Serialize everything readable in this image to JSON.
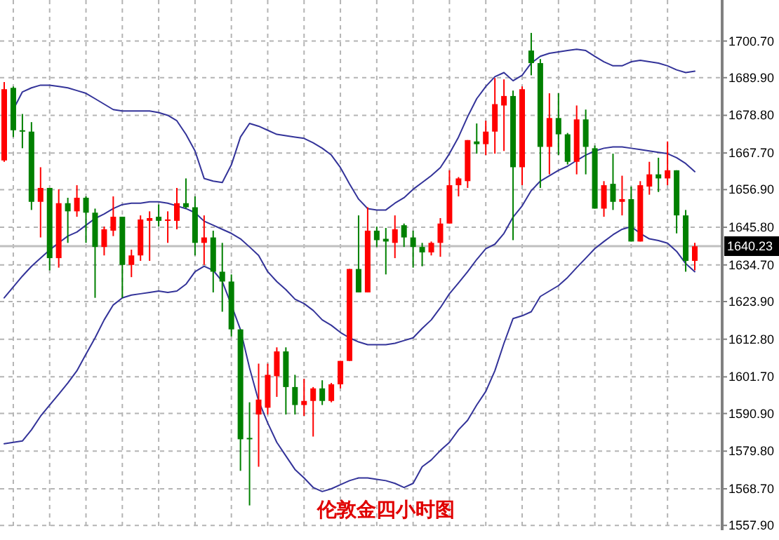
{
  "chart_data": {
    "type": "candlestick",
    "title": "伦敦金四小时图",
    "categories": [
      null,
      null,
      null,
      null,
      null,
      null,
      null,
      null,
      null,
      null,
      null,
      null,
      null,
      null,
      null,
      null,
      null,
      null,
      null,
      null,
      null,
      null,
      null,
      null,
      null,
      null,
      null,
      null,
      null,
      null,
      null,
      null,
      null,
      null,
      null,
      null,
      null,
      null,
      null,
      null,
      null,
      null,
      null,
      null,
      null,
      null,
      null,
      null,
      null,
      null,
      null,
      null,
      null,
      null,
      null,
      null,
      null,
      null,
      null,
      null,
      null,
      null,
      null,
      null,
      null,
      null,
      null,
      null,
      null,
      null,
      null,
      null,
      null,
      null,
      null,
      null,
      null
    ],
    "ohlc": [
      [
        1665.5,
        1688.6,
        1665.1,
        1686.5
      ],
      [
        1686.9,
        1687.3,
        1672.4,
        1674.4
      ],
      [
        1674.4,
        1679.2,
        1669.1,
        1674.0
      ],
      [
        1674.0,
        1676.8,
        1650.9,
        1653.3
      ],
      [
        1653.3,
        1663.5,
        1642.8,
        1657.4
      ],
      [
        1657.4,
        1657.4,
        1633.1,
        1636.7
      ],
      [
        1636.7,
        1657.0,
        1633.9,
        1652.9
      ],
      [
        1652.9,
        1654.5,
        1641.2,
        1650.5
      ],
      [
        1650.5,
        1658.2,
        1648.9,
        1654.5
      ],
      [
        1654.5,
        1654.9,
        1641.2,
        1650.1
      ],
      [
        1650.1,
        1651.3,
        1625.0,
        1640.0
      ],
      [
        1640.0,
        1646.0,
        1637.5,
        1645.2
      ],
      [
        1644.8,
        1654.9,
        1643.2,
        1648.9
      ],
      [
        1648.9,
        1648.9,
        1625.0,
        1634.7
      ],
      [
        1634.7,
        1639.2,
        1631.1,
        1637.5
      ],
      [
        1637.5,
        1649.3,
        1635.9,
        1648.1
      ],
      [
        1647.7,
        1650.5,
        1635.9,
        1648.5
      ],
      [
        1648.9,
        1652.5,
        1646.0,
        1647.7
      ],
      [
        1647.7,
        1650.5,
        1641.2,
        1648.1
      ],
      [
        1647.7,
        1657.4,
        1645.2,
        1652.9
      ],
      [
        1652.9,
        1660.2,
        1651.3,
        1651.7
      ],
      [
        1651.7,
        1654.9,
        1637.5,
        1641.2
      ],
      [
        1641.2,
        1649.3,
        1634.7,
        1642.8
      ],
      [
        1642.8,
        1644.8,
        1626.6,
        1632.7
      ],
      [
        1632.7,
        1641.2,
        1620.9,
        1629.8
      ],
      [
        1629.8,
        1631.9,
        1613.6,
        1615.7
      ],
      [
        1615.7,
        1615.7,
        1574.0,
        1583.3
      ],
      [
        1583.7,
        1594.2,
        1563.8,
        1583.3
      ],
      [
        1590.6,
        1605.6,
        1575.2,
        1595.0
      ],
      [
        1592.6,
        1605.6,
        1590.6,
        1602.3
      ],
      [
        1601.9,
        1610.4,
        1595.8,
        1609.2
      ],
      [
        1609.2,
        1610.4,
        1590.6,
        1598.7
      ],
      [
        1598.7,
        1602.3,
        1590.6,
        1593.4
      ],
      [
        1593.4,
        1601.1,
        1590.2,
        1594.6
      ],
      [
        1594.6,
        1598.7,
        1584.1,
        1598.3
      ],
      [
        1598.3,
        1600.7,
        1593.4,
        1594.6
      ],
      [
        1594.6,
        1599.9,
        1594.2,
        1599.5
      ],
      [
        1599.5,
        1606.4,
        1598.3,
        1606.4
      ],
      [
        1606.4,
        1633.5,
        1606.4,
        1633.5
      ],
      [
        1633.5,
        1649.3,
        1626.6,
        1626.6
      ],
      [
        1626.6,
        1651.7,
        1626.6,
        1644.8
      ],
      [
        1644.8,
        1646.0,
        1640.0,
        1642.0
      ],
      [
        1642.4,
        1645.6,
        1631.9,
        1641.6
      ],
      [
        1641.2,
        1649.3,
        1636.7,
        1645.2
      ],
      [
        1646.4,
        1646.9,
        1640.0,
        1642.8
      ],
      [
        1642.8,
        1644.8,
        1633.9,
        1640.0
      ],
      [
        1640.0,
        1641.2,
        1634.3,
        1638.4
      ],
      [
        1638.4,
        1641.6,
        1637.5,
        1641.2
      ],
      [
        1641.2,
        1648.5,
        1637.1,
        1646.9
      ],
      [
        1646.9,
        1662.6,
        1646.9,
        1658.2
      ],
      [
        1658.2,
        1660.6,
        1654.9,
        1660.2
      ],
      [
        1659.4,
        1671.5,
        1657.4,
        1671.5
      ],
      [
        1671.1,
        1676.4,
        1667.5,
        1670.3
      ],
      [
        1670.3,
        1677.2,
        1667.1,
        1674.0
      ],
      [
        1674.0,
        1689.8,
        1667.5,
        1682.1
      ],
      [
        1681.7,
        1689.4,
        1668.3,
        1684.5
      ],
      [
        1684.5,
        1686.1,
        1642.0,
        1663.5
      ],
      [
        1663.5,
        1687.3,
        1658.2,
        1686.5
      ],
      [
        1697.9,
        1703.1,
        1690.6,
        1694.2
      ],
      [
        1694.2,
        1695.4,
        1657.4,
        1669.5
      ],
      [
        1669.5,
        1685.3,
        1661.4,
        1678.0
      ],
      [
        1678.0,
        1685.3,
        1667.1,
        1673.2
      ],
      [
        1673.2,
        1673.6,
        1664.3,
        1665.1
      ],
      [
        1665.1,
        1681.7,
        1661.4,
        1677.6
      ],
      [
        1677.6,
        1680.5,
        1661.4,
        1669.5
      ],
      [
        1669.1,
        1669.9,
        1651.3,
        1651.3
      ],
      [
        1651.3,
        1659.4,
        1648.9,
        1658.2
      ],
      [
        1658.6,
        1667.5,
        1650.9,
        1653.3
      ],
      [
        1653.3,
        1661.0,
        1649.3,
        1654.1
      ],
      [
        1654.1,
        1657.8,
        1641.6,
        1641.6
      ],
      [
        1641.6,
        1659.4,
        1641.6,
        1658.2
      ],
      [
        1657.8,
        1665.1,
        1655.4,
        1661.4
      ],
      [
        1661.4,
        1666.3,
        1656.2,
        1660.2
      ],
      [
        1660.2,
        1671.1,
        1658.2,
        1662.6
      ],
      [
        1662.6,
        1662.6,
        1644.0,
        1649.3
      ],
      [
        1649.3,
        1650.9,
        1632.7,
        1635.9
      ],
      [
        1635.9,
        1641.2,
        1633.1,
        1640.2
      ]
    ],
    "colors": [
      "#ff0000",
      "#008000",
      "#008000",
      "#008000",
      "#ff0000",
      "#008000",
      "#ff0000",
      "#008000",
      "#ff0000",
      "#008000",
      "#008000",
      "#ff0000",
      "#ff0000",
      "#008000",
      "#ff0000",
      "#ff0000",
      "#ff0000",
      "#008000",
      "#ff0000",
      "#ff0000",
      "#008000",
      "#008000",
      "#ff0000",
      "#008000",
      "#008000",
      "#008000",
      "#008000",
      "#008000",
      "#ff0000",
      "#ff0000",
      "#ff0000",
      "#008000",
      "#008000",
      "#ff0000",
      "#ff0000",
      "#008000",
      "#ff0000",
      "#ff0000",
      "#ff0000",
      "#008000",
      "#ff0000",
      "#008000",
      "#008000",
      "#ff0000",
      "#008000",
      "#008000",
      "#008000",
      "#ff0000",
      "#ff0000",
      "#ff0000",
      "#ff0000",
      "#ff0000",
      "#008000",
      "#ff0000",
      "#ff0000",
      "#ff0000",
      "#008000",
      "#ff0000",
      "#008000",
      "#008000",
      "#ff0000",
      "#008000",
      "#008000",
      "#ff0000",
      "#008000",
      "#008000",
      "#ff0000",
      "#008000",
      "#ff0000",
      "#008000",
      "#ff0000",
      "#ff0000",
      "#008000",
      "#ff0000",
      "#008000",
      "#008000",
      "#ff0000"
    ],
    "series": [
      {
        "type": "line",
        "color": "#333399",
        "values": [
          null,
          1680.5,
          1685.7,
          1686.9,
          1687.7,
          1687.7,
          1687.3,
          1686.9,
          1686.1,
          1685.3,
          1683.7,
          1682.1,
          1680.5,
          1680.1,
          1680.1,
          1680.1,
          1680.1,
          1679.6,
          1678.8,
          1677.2,
          1673.2,
          1668.3,
          1660.2,
          1659.4,
          1659.0,
          1664.2,
          1672.4,
          1676.4,
          1675.6,
          1674.4,
          1673.2,
          1672.8,
          1672.4,
          1672.0,
          1670.7,
          1669.1,
          1667.1,
          1663.4,
          1658.6,
          1654.1,
          1651.3,
          1650.9,
          1650.9,
          1652.9,
          1654.5,
          1657.0,
          1659.0,
          1661.0,
          1663.4,
          1667.5,
          1672.4,
          1678.4,
          1683.7,
          1687.3,
          1690.2,
          1691.4,
          1689.0,
          1690.6,
          1694.2,
          1696.2,
          1697.1,
          1697.5,
          1697.9,
          1698.3,
          1697.9,
          1696.2,
          1694.6,
          1693.4,
          1693.4,
          1694.6,
          1695.0,
          1694.6,
          1694.2,
          1693.4,
          1692.2,
          1691.4,
          1691.8
        ]
      },
      {
        "type": "line",
        "color": "#333399",
        "values": [
          1625.0,
          1628.2,
          1631.4,
          1634.3,
          1636.7,
          1639.1,
          1641.2,
          1643.2,
          1644.4,
          1646.4,
          1648.4,
          1649.7,
          1651.3,
          1652.5,
          1652.9,
          1652.9,
          1653.3,
          1653.3,
          1652.9,
          1652.1,
          1651.3,
          1650.1,
          1647.6,
          1646.4,
          1645.2,
          1644.0,
          1642.4,
          1640.0,
          1637.5,
          1632.7,
          1629.8,
          1627.4,
          1624.6,
          1623.3,
          1621.3,
          1618.5,
          1616.9,
          1614.8,
          1613.2,
          1612.0,
          1611.2,
          1611.2,
          1611.2,
          1611.6,
          1612.4,
          1613.2,
          1616.0,
          1618.5,
          1622.1,
          1626.2,
          1629.4,
          1632.7,
          1636.3,
          1639.5,
          1640.8,
          1644.0,
          1648.8,
          1652.1,
          1656.6,
          1659.4,
          1661.0,
          1662.6,
          1663.8,
          1665.5,
          1667.1,
          1668.3,
          1669.1,
          1669.5,
          1669.5,
          1669.1,
          1668.7,
          1668.3,
          1667.9,
          1667.5,
          1666.3,
          1664.6,
          1662.2
        ]
      },
      {
        "type": "line",
        "color": "#333399",
        "values": [
          1582.0,
          1582.4,
          1582.8,
          1586.1,
          1590.1,
          1593.4,
          1596.6,
          1599.9,
          1603.5,
          1608.4,
          1613.2,
          1618.5,
          1622.9,
          1625.0,
          1625.8,
          1626.2,
          1626.6,
          1627.0,
          1626.6,
          1627.0,
          1629.0,
          1632.7,
          1634.3,
          1633.1,
          1629.8,
          1622.9,
          1615.6,
          1604.3,
          1594.6,
          1588.1,
          1582.4,
          1578.4,
          1574.4,
          1571.9,
          1569.1,
          1567.9,
          1568.7,
          1569.9,
          1571.1,
          1571.9,
          1571.9,
          1571.5,
          1571.1,
          1570.3,
          1569.1,
          1570.3,
          1575.2,
          1577.2,
          1580.0,
          1582.4,
          1586.1,
          1588.9,
          1593.4,
          1597.4,
          1603.5,
          1611.6,
          1618.9,
          1619.7,
          1620.9,
          1625.4,
          1627.0,
          1628.6,
          1631.0,
          1633.9,
          1636.7,
          1639.5,
          1641.6,
          1643.6,
          1645.2,
          1646.0,
          1644.0,
          1642.4,
          1641.9,
          1641.1,
          1638.7,
          1635.1,
          1632.7
        ]
      }
    ],
    "ylim": [
      1556.5,
      1712.8
    ],
    "yticks": [
      {
        "value": 1700.7,
        "label": "1700.70"
      },
      {
        "value": 1689.9,
        "label": "1689.90"
      },
      {
        "value": 1678.8,
        "label": "1678.80"
      },
      {
        "value": 1667.7,
        "label": "1667.70"
      },
      {
        "value": 1656.9,
        "label": "1656.90"
      },
      {
        "value": 1645.8,
        "label": "1645.80"
      },
      {
        "value": 1634.7,
        "label": "1634.70"
      },
      {
        "value": 1623.9,
        "label": "1623.90"
      },
      {
        "value": 1612.8,
        "label": "1612.80"
      },
      {
        "value": 1601.7,
        "label": "1601.70"
      },
      {
        "value": 1590.9,
        "label": "1590.90"
      },
      {
        "value": 1579.8,
        "label": "1579.80"
      },
      {
        "value": 1568.7,
        "label": "1568.70"
      },
      {
        "value": 1557.9,
        "label": "1557.90"
      }
    ],
    "grid": true,
    "tick_labels": "y",
    "ref_lines": [
      {
        "axis": "y",
        "value": 1640.23,
        "label": "1640.23",
        "color": "#c0c0c0"
      }
    ]
  }
}
